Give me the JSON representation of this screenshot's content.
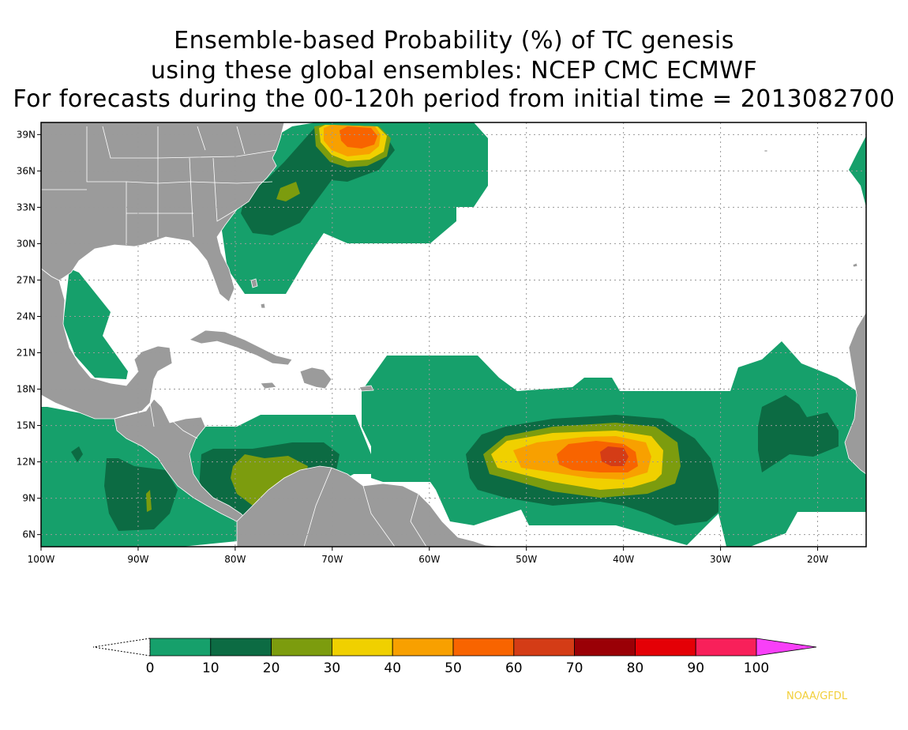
{
  "title": {
    "line1": "Ensemble-based Probability (%) of TC genesis",
    "line2": "using these global ensembles:   NCEP CMC ECMWF",
    "line3": "For forecasts during the 00-120h period from initial time = 2013082700"
  },
  "map": {
    "lon_range": [
      -100,
      -15
    ],
    "lat_range": [
      5,
      40
    ],
    "lon_ticks": [
      {
        "lon": -100,
        "label": "100W"
      },
      {
        "lon": -90,
        "label": "90W"
      },
      {
        "lon": -80,
        "label": "80W"
      },
      {
        "lon": -70,
        "label": "70W"
      },
      {
        "lon": -60,
        "label": "60W"
      },
      {
        "lon": -50,
        "label": "50W"
      },
      {
        "lon": -40,
        "label": "40W"
      },
      {
        "lon": -30,
        "label": "30W"
      },
      {
        "lon": -20,
        "label": "20W"
      }
    ],
    "lat_ticks": [
      {
        "lat": 6,
        "label": "6N"
      },
      {
        "lat": 9,
        "label": "9N"
      },
      {
        "lat": 12,
        "label": "12N"
      },
      {
        "lat": 15,
        "label": "15N"
      },
      {
        "lat": 18,
        "label": "18N"
      },
      {
        "lat": 21,
        "label": "21N"
      },
      {
        "lat": 24,
        "label": "24N"
      },
      {
        "lat": 27,
        "label": "27N"
      },
      {
        "lat": 30,
        "label": "30N"
      },
      {
        "lat": 33,
        "label": "33N"
      },
      {
        "lat": 36,
        "label": "36N"
      },
      {
        "lat": 39,
        "label": "39N"
      }
    ],
    "grid": true,
    "land_color": "#9b9b9b"
  },
  "colorbar": {
    "levels": [
      "0",
      "10",
      "20",
      "30",
      "40",
      "50",
      "60",
      "70",
      "80",
      "90",
      "100"
    ],
    "colors": [
      "#16a06b",
      "#0c6b43",
      "#7c9c0e",
      "#f0d000",
      "#f8a000",
      "#f86400",
      "#d43c16",
      "#9a0006",
      "#e40006",
      "#f8205a"
    ],
    "over_color": "#f840f8"
  },
  "credit": "NOAA/GFDL"
}
